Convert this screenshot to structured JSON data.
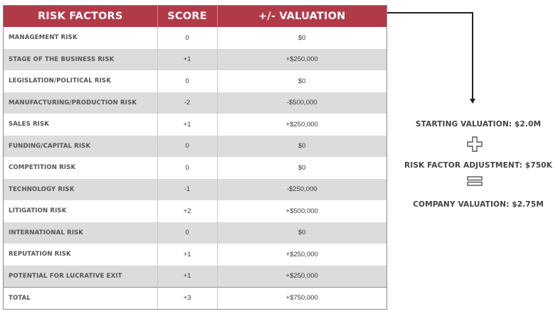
{
  "table": {
    "headers": [
      "RISK FACTORS",
      "SCORE",
      "+/- VALUATION"
    ],
    "rows": [
      {
        "factor": "MANAGEMENT RISK",
        "score": "0",
        "valuation": "$0"
      },
      {
        "factor": "STAGE OF THE BUSINESS RISK",
        "score": "+1",
        "valuation": "+$250,000"
      },
      {
        "factor": "LEGISLATION/POLITICAL RISK",
        "score": "0",
        "valuation": "$0"
      },
      {
        "factor": "MANUFACTURING/PRODUCTION RISK",
        "score": "-2",
        "valuation": "-$500,000"
      },
      {
        "factor": "SALES RISK",
        "score": "+1",
        "valuation": "+$250,000"
      },
      {
        "factor": "FUNDING/CAPITAL RISK",
        "score": "0",
        "valuation": "$0"
      },
      {
        "factor": "COMPETITION RISK",
        "score": "0",
        "valuation": "$0"
      },
      {
        "factor": "TECHNOLOGY RISK",
        "score": "-1",
        "valuation": "-$250,000"
      },
      {
        "factor": "LITIGATION RISK",
        "score": "+2",
        "valuation": "+$500,000"
      },
      {
        "factor": "INTERNATIONAL RISK",
        "score": "0",
        "valuation": "$0"
      },
      {
        "factor": "REPUTATION RISK",
        "score": "+1",
        "valuation": "+$250,000"
      },
      {
        "factor": "POTENTIAL FOR LUCRATIVE EXIT",
        "score": "+1",
        "valuation": "+$250,000"
      }
    ],
    "total": {
      "factor": "TOTAL",
      "score": "+3",
      "valuation": "+$750,000"
    }
  },
  "summary": {
    "starting": "STARTING VALUATION: $2.0M",
    "adjustment": "RISK FACTOR ADJUSTMENT: $750K",
    "company": "COMPANY VALUATION: $2.75M",
    "plus_icon": "plus-icon",
    "equals_icon": "equals-icon"
  },
  "colors": {
    "header_bg": "#b03a48",
    "alt_row_bg": "#dcdcdc"
  }
}
